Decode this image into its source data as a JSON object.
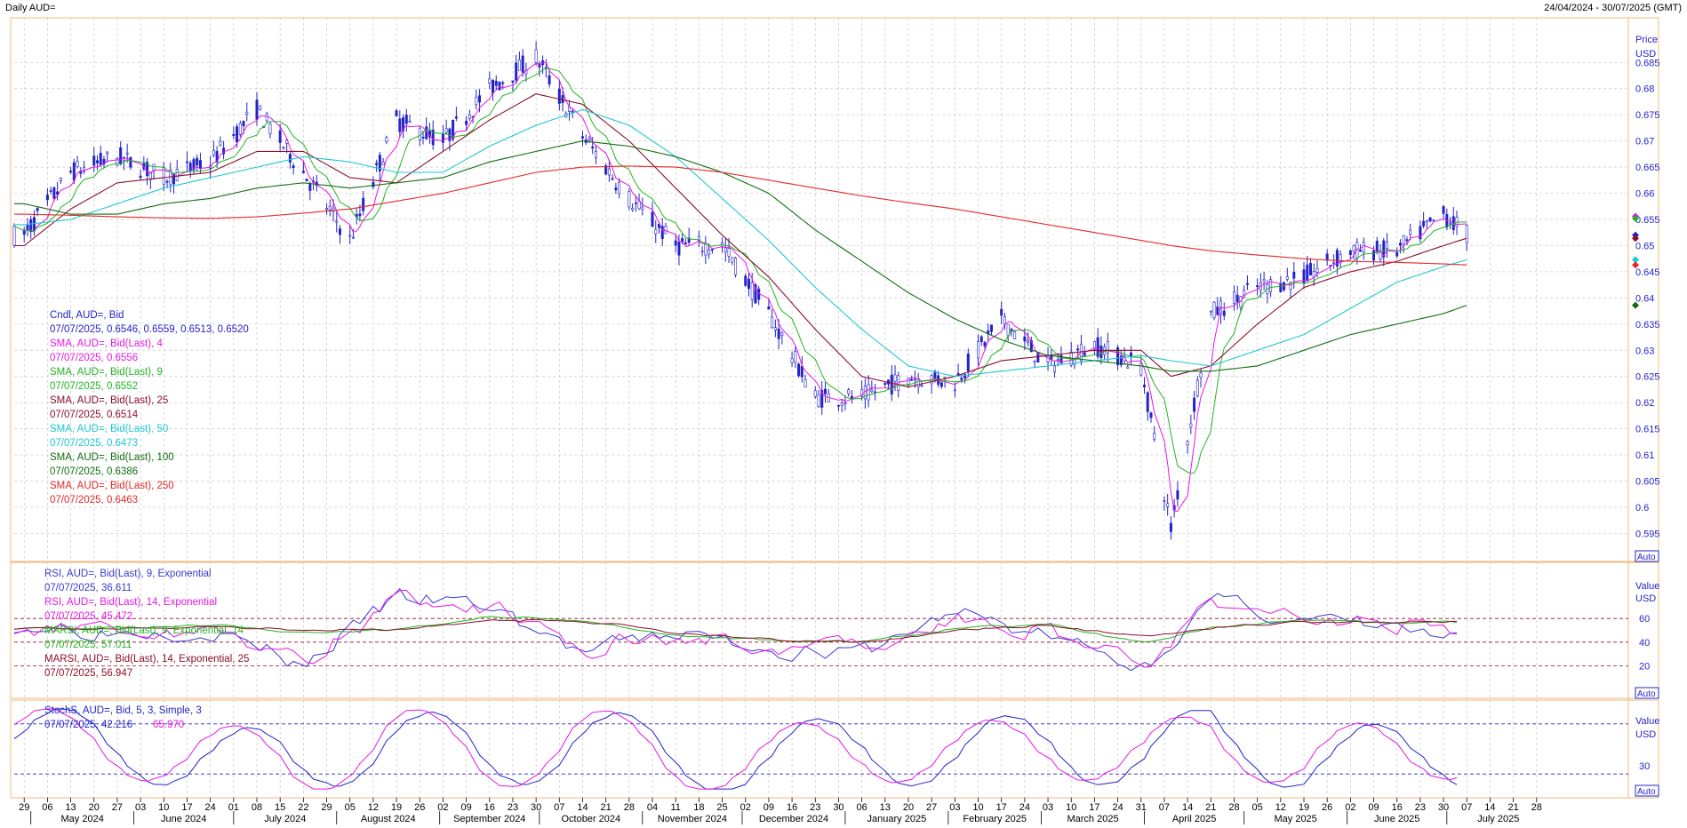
{
  "header": {
    "title": "Daily AUD=",
    "range": "24/04/2024 - 30/07/2025 (GMT)"
  },
  "colors": {
    "candle": "#2323c8",
    "sma4": "#e617e6",
    "sma9": "#22b422",
    "sma25": "#8b0f2a",
    "sma50": "#1ec8d2",
    "sma100": "#0f6e0f",
    "sma250": "#e62828",
    "rsi9": "#3a3ad2",
    "rsi14": "#e617e6",
    "marsi9": "#22b422",
    "marsi14": "#8b0f2a",
    "stoch_k": "#2323c8",
    "stoch_d": "#e617e6",
    "frame": "#f0b878",
    "grid": "#c8c8c8"
  },
  "main_panel": {
    "axis_title": "Price",
    "axis_unit": "USD",
    "y_ticks": [
      "0.685",
      "0.68",
      "0.675",
      "0.67",
      "0.665",
      "0.66",
      "0.655",
      "0.65",
      "0.645",
      "0.64",
      "0.635",
      "0.63",
      "0.625",
      "0.62",
      "0.615",
      "0.61",
      "0.605",
      "0.6",
      "0.595"
    ],
    "auto_label": "Auto",
    "legend": [
      {
        "label": "Cndl, AUD=, Bid",
        "value": "07/07/2025, 0.6546, 0.6559, 0.6513, 0.6520",
        "color": "#2323c8"
      },
      {
        "label": "SMA, AUD=, Bid(Last), 4",
        "value": "07/07/2025, 0.6556",
        "color": "#e617e6"
      },
      {
        "label": "SMA, AUD=, Bid(Last), 9",
        "value": "07/07/2025, 0.6552",
        "color": "#22b422"
      },
      {
        "label": "SMA, AUD=, Bid(Last), 25",
        "value": "07/07/2025, 0.6514",
        "color": "#8b0f2a"
      },
      {
        "label": "SMA, AUD=, Bid(Last), 50",
        "value": "07/07/2025, 0.6473",
        "color": "#1ec8d2"
      },
      {
        "label": "SMA, AUD=, Bid(Last), 100",
        "value": "07/07/2025, 0.6386",
        "color": "#0f6e0f"
      },
      {
        "label": "SMA, AUD=, Bid(Last), 250",
        "value": "07/07/2025, 0.6463",
        "color": "#e62828"
      }
    ]
  },
  "rsi_panel": {
    "axis_title": "Value",
    "axis_unit": "USD",
    "y_ticks": [
      "60",
      "40",
      "20"
    ],
    "auto_label": "Auto",
    "legend": [
      {
        "label": "RSI, AUD=, Bid(Last), 9, Exponential",
        "value": "07/07/2025, 36.611",
        "color": "#3a3ad2"
      },
      {
        "label": "RSI, AUD=, Bid(Last), 14, Exponential",
        "value": "07/07/2025, 45.472",
        "color": "#e617e6"
      },
      {
        "label": "MARSI, AUD=, Bid(Last), 9, Exponential, 14",
        "value": "07/07/2025, 57.011",
        "color": "#22b422"
      },
      {
        "label": "MARSI, AUD=, Bid(Last), 14, Exponential, 25",
        "value": "07/07/2025, 56.947",
        "color": "#8b0f2a"
      }
    ]
  },
  "stoch_panel": {
    "axis_title": "Value",
    "axis_unit": "USD",
    "y_ticks": [
      "30"
    ],
    "auto_label": "Auto",
    "legend": [
      {
        "label": "StochS, AUD=, Bid,  5, 3, Simple, 3",
        "value": "07/07/2025, 42.216",
        "value2": "65.970",
        "color": "#2323c8",
        "color2": "#e617e6"
      }
    ]
  },
  "x_axis": {
    "day_ticks": [
      "29",
      "06",
      "13",
      "20",
      "27",
      "03",
      "10",
      "17",
      "24",
      "01",
      "08",
      "15",
      "22",
      "29",
      "05",
      "12",
      "19",
      "26",
      "02",
      "09",
      "16",
      "23",
      "30",
      "07",
      "14",
      "21",
      "28",
      "04",
      "11",
      "18",
      "25",
      "02",
      "09",
      "16",
      "23",
      "30",
      "06",
      "13",
      "20",
      "27",
      "03",
      "10",
      "17",
      "24",
      "03",
      "10",
      "17",
      "24",
      "31",
      "07",
      "14",
      "21",
      "28",
      "05",
      "12",
      "19",
      "26",
      "02",
      "09",
      "16",
      "23",
      "30",
      "07",
      "14",
      "21",
      "28"
    ],
    "month_labels": [
      "May 2024",
      "June 2024",
      "July 2024",
      "August 2024",
      "September 2024",
      "October 2024",
      "November 2024",
      "December 2024",
      "January 2025",
      "February 2025",
      "March 2025",
      "April 2025",
      "May 2025",
      "June 2025",
      "July 2025"
    ]
  },
  "chart_data": [
    {
      "type": "line",
      "title": "Daily AUD=",
      "ylabel": "Price USD",
      "ylim": [
        0.591,
        0.6915
      ],
      "x": [
        "2024-04-29",
        "2024-05-13",
        "2024-05-27",
        "2024-06-10",
        "2024-06-24",
        "2024-07-08",
        "2024-07-22",
        "2024-08-05",
        "2024-08-19",
        "2024-09-02",
        "2024-09-16",
        "2024-09-30",
        "2024-10-14",
        "2024-10-28",
        "2024-11-11",
        "2024-11-25",
        "2024-12-09",
        "2024-12-23",
        "2025-01-06",
        "2025-01-20",
        "2025-02-03",
        "2025-02-17",
        "2025-03-03",
        "2025-03-17",
        "2025-03-31",
        "2025-04-09",
        "2025-04-21",
        "2025-05-05",
        "2025-05-19",
        "2025-06-02",
        "2025-06-16",
        "2025-06-30",
        "2025-07-07"
      ],
      "series": [
        {
          "name": "Cndl, AUD=, Bid",
          "values": [
            0.652,
            0.664,
            0.667,
            0.663,
            0.666,
            0.676,
            0.664,
            0.651,
            0.674,
            0.67,
            0.68,
            0.686,
            0.671,
            0.659,
            0.65,
            0.65,
            0.637,
            0.621,
            0.621,
            0.625,
            0.624,
            0.636,
            0.627,
            0.631,
            0.627,
            0.596,
            0.637,
            0.642,
            0.644,
            0.649,
            0.649,
            0.656,
            0.652
          ]
        },
        {
          "name": "SMA, AUD=, Bid(Last), 25",
          "values": [
            0.65,
            0.657,
            0.662,
            0.663,
            0.664,
            0.668,
            0.668,
            0.663,
            0.662,
            0.668,
            0.674,
            0.679,
            0.677,
            0.67,
            0.661,
            0.652,
            0.644,
            0.634,
            0.625,
            0.623,
            0.625,
            0.628,
            0.629,
            0.63,
            0.63,
            0.625,
            0.627,
            0.635,
            0.642,
            0.645,
            0.647,
            0.65,
            0.6514
          ]
        },
        {
          "name": "SMA, AUD=, Bid(Last), 50",
          "values": [
            0.654,
            0.655,
            0.658,
            0.661,
            0.663,
            0.665,
            0.667,
            0.666,
            0.664,
            0.664,
            0.669,
            0.673,
            0.676,
            0.673,
            0.667,
            0.659,
            0.651,
            0.642,
            0.634,
            0.627,
            0.625,
            0.626,
            0.627,
            0.628,
            0.629,
            0.628,
            0.627,
            0.63,
            0.633,
            0.638,
            0.643,
            0.646,
            0.6473
          ]
        },
        {
          "name": "SMA, AUD=, Bid(Last), 100",
          "values": [
            0.658,
            0.656,
            0.656,
            0.658,
            0.659,
            0.661,
            0.662,
            0.661,
            0.662,
            0.663,
            0.666,
            0.668,
            0.67,
            0.669,
            0.667,
            0.664,
            0.66,
            0.653,
            0.647,
            0.641,
            0.636,
            0.632,
            0.629,
            0.628,
            0.627,
            0.626,
            0.626,
            0.627,
            0.63,
            0.633,
            0.635,
            0.637,
            0.6386
          ]
        },
        {
          "name": "SMA, AUD=, Bid(Last), 250",
          "values": [
            0.656,
            0.6558,
            0.6555,
            0.6553,
            0.6552,
            0.6555,
            0.6562,
            0.657,
            0.6585,
            0.66,
            0.662,
            0.664,
            0.665,
            0.6652,
            0.665,
            0.664,
            0.6625,
            0.661,
            0.6595,
            0.6582,
            0.657,
            0.6555,
            0.654,
            0.6525,
            0.651,
            0.65,
            0.649,
            0.6482,
            0.6475,
            0.647,
            0.6468,
            0.6465,
            0.6463
          ]
        }
      ]
    },
    {
      "type": "line",
      "title": "RSI",
      "ylim": [
        0,
        100
      ],
      "x": [
        "2024-04-29",
        "2024-05-27",
        "2024-06-24",
        "2024-07-22",
        "2024-08-19",
        "2024-09-16",
        "2024-10-14",
        "2024-11-11",
        "2024-12-09",
        "2025-01-06",
        "2025-02-03",
        "2025-03-03",
        "2025-03-31",
        "2025-04-21",
        "2025-05-19",
        "2025-06-16",
        "2025-07-07"
      ],
      "series": [
        {
          "name": "RSI, AUD=, Bid(Last), 9, Exponential",
          "values": [
            55,
            50,
            52,
            20,
            78,
            70,
            30,
            48,
            35,
            30,
            66,
            45,
            18,
            75,
            58,
            52,
            36.611
          ]
        },
        {
          "name": "RSI, AUD=, Bid(Last), 14, Exponential",
          "values": [
            54,
            52,
            52,
            25,
            74,
            70,
            34,
            47,
            38,
            33,
            62,
            47,
            22,
            70,
            58,
            54,
            45.472
          ]
        },
        {
          "name": "MARSI, AUD=, Bid(Last), 9, Exponential, 14",
          "values": [
            52,
            52,
            55,
            48,
            50,
            62,
            58,
            45,
            42,
            40,
            52,
            55,
            40,
            52,
            58,
            56,
            57.011
          ]
        },
        {
          "name": "MARSI, AUD=, Bid(Last), 14, Exponential, 25",
          "values": [
            52,
            52,
            54,
            50,
            50,
            58,
            58,
            48,
            42,
            40,
            50,
            54,
            45,
            52,
            57,
            56,
            56.947
          ]
        }
      ]
    },
    {
      "type": "line",
      "title": "StochS",
      "ylim": [
        0,
        100
      ],
      "x": [
        "2024-04-29",
        "2024-05-27",
        "2024-06-24",
        "2024-07-22",
        "2024-08-19",
        "2024-09-16",
        "2024-10-14",
        "2024-11-11",
        "2024-12-09",
        "2025-01-06",
        "2025-02-03",
        "2025-03-03",
        "2025-03-31",
        "2025-04-21",
        "2025-05-19",
        "2025-06-16",
        "2025-07-07"
      ],
      "series": [
        {
          "name": "%K",
          "values": [
            80,
            60,
            20,
            5,
            90,
            15,
            85,
            20,
            10,
            70,
            10,
            85,
            5,
            90,
            20,
            25,
            42.216
          ]
        },
        {
          "name": "%D",
          "values": [
            75,
            65,
            25,
            8,
            85,
            20,
            80,
            25,
            12,
            65,
            15,
            80,
            8,
            85,
            25,
            30,
            65.97
          ]
        }
      ]
    }
  ]
}
